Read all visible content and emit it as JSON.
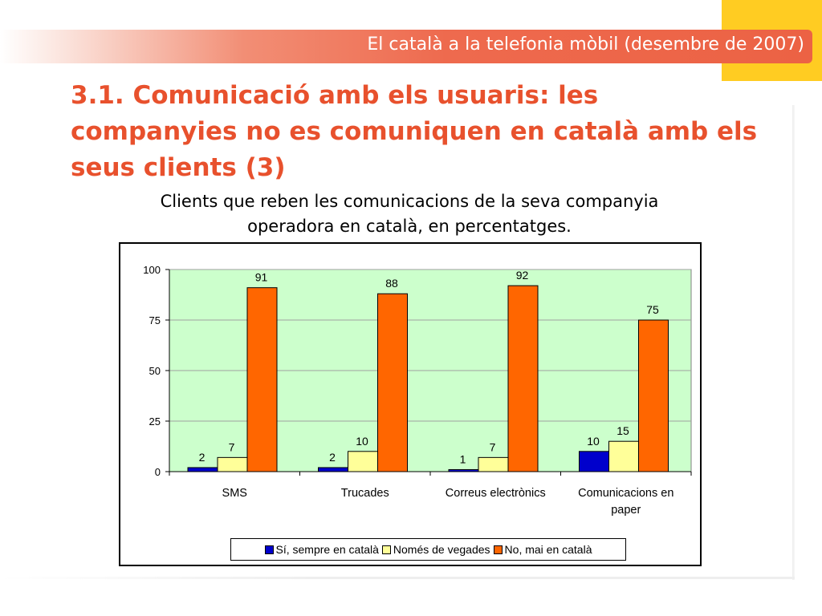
{
  "header": {
    "band_title": "El català a la telefonia mòbil (desembre de 2007)"
  },
  "slide": {
    "title": "3.1. Comunicació amb els usuaris: les companyies no es comuniquen en català amb els seus clients (3)",
    "chart_caption": "Clients que reben les comunicacions de la seva companyia operadora en català, en percentatges."
  },
  "colors": {
    "accent": "#e8512d",
    "yellow": "#ffcc22",
    "plot_background": "#ccffcc",
    "series_blue": "#0000cc",
    "series_yellow": "#ffff99",
    "series_orange": "#ff6600"
  },
  "chart_data": {
    "type": "bar",
    "categories": [
      "SMS",
      "Trucades",
      "Correus electrònics",
      "Comunicacions en paper"
    ],
    "category_label_lines": [
      [
        "SMS"
      ],
      [
        "Trucades"
      ],
      [
        "Correus electrònics"
      ],
      [
        "Comunicacions en",
        "paper"
      ]
    ],
    "series": [
      {
        "name": "Sí, sempre en català",
        "values": [
          2,
          2,
          1,
          10
        ],
        "color": "#0000cc"
      },
      {
        "name": "Només de vegades",
        "values": [
          7,
          10,
          7,
          15
        ],
        "color": "#ffff99"
      },
      {
        "name": "No, mai en català",
        "values": [
          91,
          88,
          92,
          75
        ],
        "color": "#ff6600"
      }
    ],
    "ylim": [
      0,
      100
    ],
    "yticks": [
      0,
      25,
      50,
      75,
      100
    ],
    "grid": true,
    "legend_position": "bottom",
    "title": "",
    "xlabel": "",
    "ylabel": ""
  }
}
